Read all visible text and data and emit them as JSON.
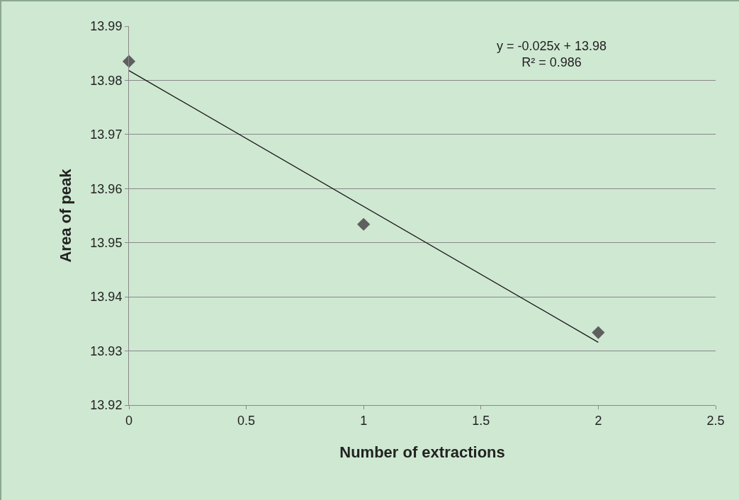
{
  "chart_data": {
    "type": "scatter",
    "xlabel": "Number of extractions",
    "ylabel": "Area of peak",
    "annotations": [
      "y = -0.025x + 13.98\nR² = 0.986"
    ],
    "series": [
      {
        "color": "#5f5f5f",
        "marker": "diamond",
        "x": [
          0,
          1,
          2
        ],
        "values": [
          13.9835,
          13.9534,
          13.9334
        ]
      },
      {
        "type": "line",
        "color": "#1a1a1a",
        "marker": "none",
        "line_style": "solid",
        "x": [
          0,
          2
        ],
        "values": [
          13.9818,
          13.9316
        ]
      }
    ],
    "xlim": [
      0,
      2.5
    ],
    "xticks": [
      0,
      0.5,
      1,
      1.5,
      2,
      2.5
    ],
    "ylim": [
      13.92,
      13.99
    ],
    "yticks": [
      13.92,
      13.93,
      13.94,
      13.95,
      13.96,
      13.97,
      13.98,
      13.99
    ],
    "grid": "y"
  }
}
